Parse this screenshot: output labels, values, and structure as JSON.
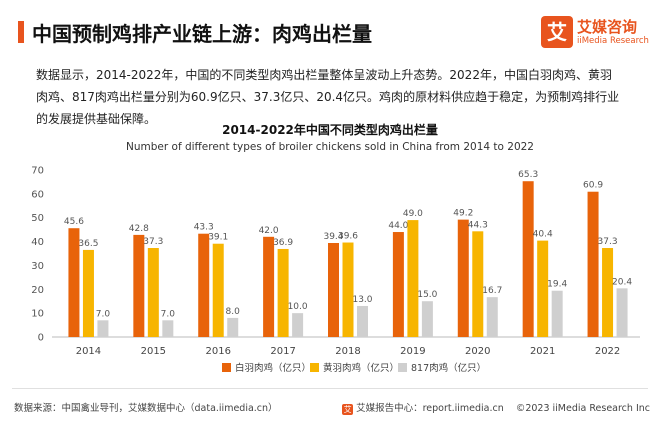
{
  "header": {
    "title": "中国预制鸡排产业链上游：肉鸡出栏量",
    "logo_glyph": "艾",
    "logo_cn": "艾媒咨询",
    "logo_en": "iiMedia Research"
  },
  "description": {
    "line1": "数据显示，2014-2022年，中国的不同类型肉鸡出栏量整体呈波动上升态势。2022年，中国白羽肉鸡、黄羽",
    "line2": "肉鸡、817肉鸡出栏量分别为60.9亿只、37.3亿只、20.4亿只。鸡肉的原材料供应趋于稳定，为预制鸡排行业",
    "line3": "的发展提供基础保障。"
  },
  "chart_data": {
    "type": "bar",
    "title": "2014-2022年中国不同类型肉鸡出栏量",
    "subtitle": "Number of different types of broiler chickens sold in China from 2014 to 2022",
    "categories": [
      "2014",
      "2015",
      "2016",
      "2017",
      "2018",
      "2019",
      "2020",
      "2021",
      "2022"
    ],
    "series": [
      {
        "name": "白羽肉鸡（亿只）",
        "color": "#e8630a",
        "values": [
          45.6,
          42.8,
          43.3,
          42.0,
          39.4,
          44.0,
          49.2,
          65.3,
          60.9
        ]
      },
      {
        "name": "黄羽肉鸡（亿只）",
        "color": "#f7b500",
        "values": [
          36.5,
          37.3,
          39.1,
          36.9,
          39.6,
          49.0,
          44.3,
          40.4,
          37.3
        ]
      },
      {
        "name": "817肉鸡（亿只）",
        "color": "#cfcfcf",
        "values": [
          7.0,
          7.0,
          8.0,
          10.0,
          13.0,
          15.0,
          16.7,
          19.4,
          20.4
        ]
      }
    ],
    "yticks": [
      "0",
      "10",
      "20",
      "30",
      "40",
      "50",
      "60",
      "70"
    ],
    "ylim": [
      0,
      70
    ],
    "grid": false,
    "legend": "bottom-center"
  },
  "footer": {
    "source": "数据来源：中国禽业导刊，艾媒数据中心（data.iimedia.cn）",
    "logo_glyph": "艾",
    "report_center": "艾媒报告中心：report.iimedia.cn",
    "copyright": "©2023  iiMedia Research Inc"
  }
}
